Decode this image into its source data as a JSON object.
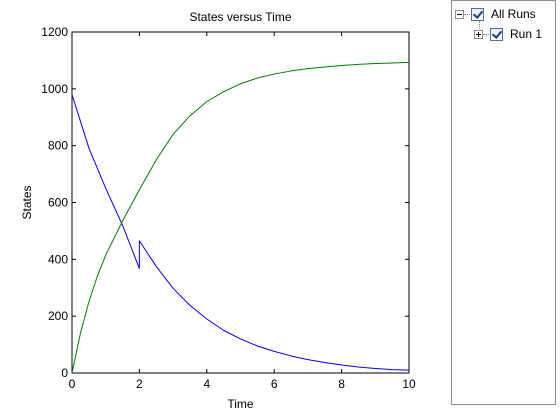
{
  "chart_data": {
    "type": "line",
    "title": "States versus Time",
    "xlabel": "Time",
    "ylabel": "States",
    "xlim": [
      0,
      10
    ],
    "ylim": [
      0,
      1200
    ],
    "xticks": [
      0,
      2,
      4,
      6,
      8,
      10
    ],
    "yticks": [
      0,
      200,
      400,
      600,
      800,
      1000,
      1200
    ],
    "grid": false,
    "series": [
      {
        "color": "#0000ff",
        "x": [
          0,
          0.5,
          1,
          1.5,
          1.999,
          2.0,
          2.5,
          3,
          3.5,
          4,
          4.5,
          5,
          5.5,
          6,
          6.5,
          7,
          7.5,
          8,
          8.5,
          9,
          9.5,
          10
        ],
        "y": [
          980,
          792,
          650,
          520,
          368,
          465,
          375,
          298,
          238,
          190,
          150,
          120,
          95,
          76,
          60,
          47,
          37,
          28,
          21,
          16,
          12,
          10
        ]
      },
      {
        "color": "#007f00",
        "x": [
          0,
          0.25,
          0.5,
          0.75,
          1,
          1.5,
          2,
          2.5,
          3,
          3.5,
          4,
          4.5,
          5,
          5.5,
          6,
          6.5,
          7,
          7.5,
          8,
          8.5,
          9,
          9.5,
          10
        ],
        "y": [
          0,
          140,
          250,
          340,
          415,
          535,
          645,
          750,
          840,
          905,
          955,
          990,
          1018,
          1038,
          1052,
          1063,
          1071,
          1077,
          1082,
          1086,
          1089,
          1091,
          1093
        ]
      }
    ]
  },
  "legend": {
    "root_label": "All Runs",
    "run_label": "Run 1"
  }
}
